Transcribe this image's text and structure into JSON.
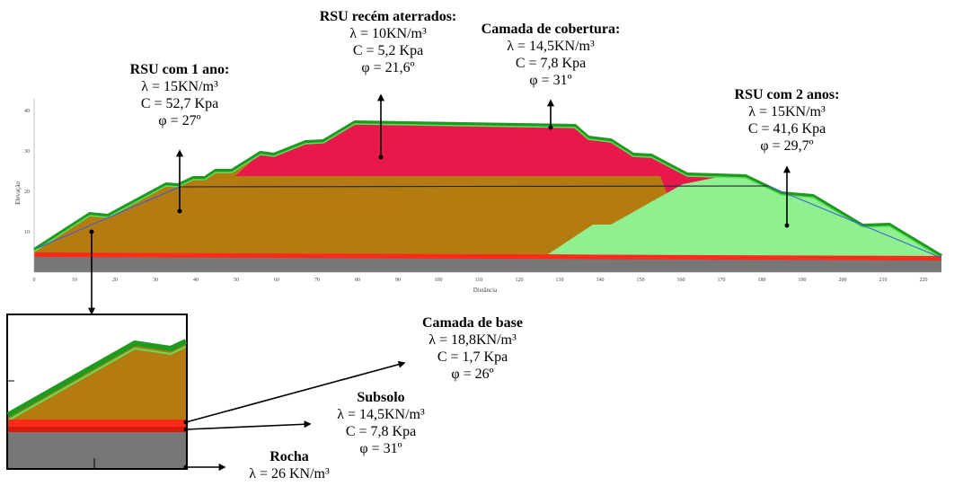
{
  "axes": {
    "y_label": "Elevação",
    "x_label": "Distância",
    "y_ticks": [
      10,
      20,
      30,
      40
    ],
    "x_ticks": [
      0,
      10,
      20,
      30,
      40,
      50,
      60,
      70,
      80,
      90,
      100,
      110,
      120,
      130,
      140,
      150,
      160,
      170,
      180,
      190,
      200,
      210,
      220
    ]
  },
  "annotations": [
    {
      "title": "RSU com 1 ano:",
      "lines": [
        "λ = 15KN/m³",
        "C = 52,7 Kpa",
        "φ = 27º"
      ]
    },
    {
      "title": "RSU recém aterrados:",
      "lines": [
        "λ = 10KN/m³",
        "C = 5,2 Kpa",
        "φ = 21,6º"
      ]
    },
    {
      "title": "Camada de cobertura:",
      "lines": [
        "λ = 14,5KN/m³",
        "C = 7,8 Kpa",
        "φ = 31º"
      ]
    },
    {
      "title": "RSU com 2 anos:",
      "lines": [
        "λ = 15KN/m³",
        "C = 41,6 Kpa",
        "φ = 29,7º"
      ]
    },
    {
      "title": "Camada de base",
      "lines": [
        "λ = 18,8KN/m³",
        "C = 1,7 Kpa",
        "φ = 26º"
      ]
    },
    {
      "title": "Subsolo",
      "lines": [
        "λ = 14,5KN/m³",
        "C = 7,8 Kpa",
        "φ = 31º"
      ]
    },
    {
      "title": "Rocha",
      "lines": [
        "λ = 26 KN/m³"
      ]
    }
  ]
}
